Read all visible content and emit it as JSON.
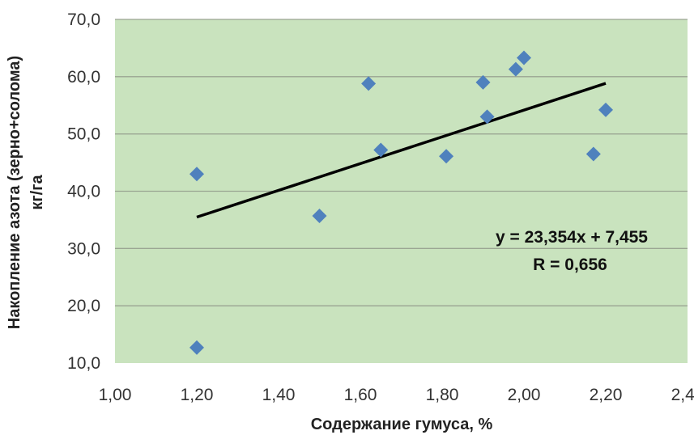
{
  "chart_data": {
    "type": "scatter",
    "xlabel": "Содержание гумуса, %",
    "ylabel_line1": "Накопление азота (зерно+солома)",
    "ylabel_line2": "кг/га",
    "xlim": [
      1.0,
      2.4
    ],
    "ylim": [
      10.0,
      70.0
    ],
    "x_ticks": [
      "1,00",
      "1,20",
      "1,40",
      "1,60",
      "1,80",
      "2,00",
      "2,20",
      "2,40"
    ],
    "x_tick_values": [
      1.0,
      1.2,
      1.4,
      1.6,
      1.8,
      2.0,
      2.2,
      2.4
    ],
    "y_ticks": [
      "10,0",
      "20,0",
      "30,0",
      "40,0",
      "50,0",
      "60,0",
      "70,0"
    ],
    "y_tick_values": [
      10,
      20,
      30,
      40,
      50,
      60,
      70
    ],
    "grid": "horizontal",
    "colors": {
      "plot_background": "#c9e3be",
      "marker": "#4f81bd",
      "trendline": "#000000",
      "gridline": "#9aa592"
    },
    "points": [
      {
        "x": 1.2,
        "y": 43.0
      },
      {
        "x": 1.2,
        "y": 12.7
      },
      {
        "x": 1.5,
        "y": 35.7
      },
      {
        "x": 1.62,
        "y": 58.8
      },
      {
        "x": 1.65,
        "y": 47.2
      },
      {
        "x": 1.81,
        "y": 46.1
      },
      {
        "x": 1.9,
        "y": 59.0
      },
      {
        "x": 1.91,
        "y": 53.0
      },
      {
        "x": 1.98,
        "y": 61.3
      },
      {
        "x": 2.0,
        "y": 63.3
      },
      {
        "x": 2.17,
        "y": 46.5
      },
      {
        "x": 2.2,
        "y": 54.2
      }
    ],
    "trendline": {
      "x": [
        1.2,
        2.2
      ],
      "slope": 23.354,
      "intercept": 7.455
    },
    "annotations": [
      "y = 23,354x + 7,455",
      "R = 0,656"
    ]
  }
}
